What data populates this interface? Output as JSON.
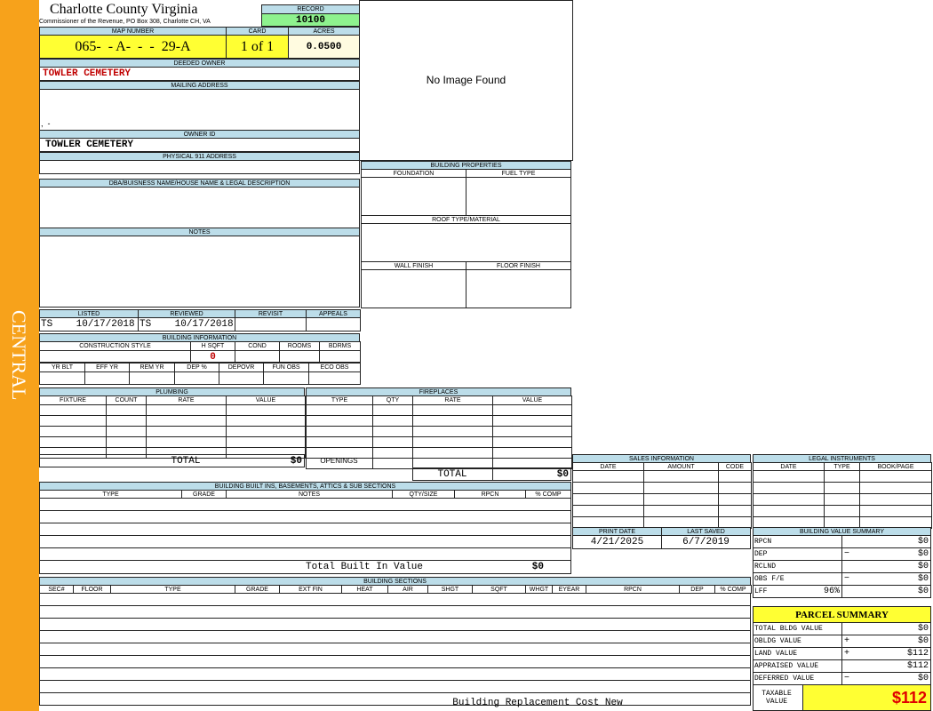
{
  "sidebar_label": "CENTRAL",
  "header": {
    "title": "Charlotte County Virginia",
    "subtitle": "Commissioner of the Revenue, PO Box 308, Charlotte CH, VA",
    "record_label": "RECORD",
    "record": "10100"
  },
  "parcel": {
    "map_number_label": "MAP NUMBER",
    "map_number": "065-  - A-  -  -  29-A",
    "card_label": "CARD",
    "card": "1 of 1",
    "acres_label": "ACRES",
    "acres": "0.0500"
  },
  "image": "No Image Found",
  "owner": {
    "deeded_owner_label": "DEEDED OWNER",
    "deeded_owner": "TOWLER CEMETERY",
    "mailing_address_label": "MAILING ADDRESS",
    "mailing_address": ",  -",
    "owner_id_label": "OWNER ID",
    "owner_id": "TOWLER CEMETERY",
    "physical_address_label": "PHYSICAL 911 ADDRESS",
    "dba_label": "DBA/BUISNESS NAME/HOUSE NAME & LEGAL DESCRIPTION",
    "notes_label": "NOTES"
  },
  "building_properties": {
    "title": "BUILDING PROPERTIES",
    "foundation": "FOUNDATION",
    "fuel_type": "FUEL TYPE",
    "roof": "ROOF TYPE/MATERIAL",
    "wall_finish": "WALL FINISH",
    "floor_finish": "FLOOR FINISH"
  },
  "review": {
    "headers": [
      "LISTED",
      "REVIEWED",
      "REVISIT",
      "APPEALS"
    ],
    "listed": "TS    10/17/2018",
    "reviewed": "TS    10/17/2018"
  },
  "building_information": {
    "title": "BUILDING INFORMATION",
    "headers": [
      "CONSTRUCTION STYLE",
      "H SQFT",
      "COND",
      "ROOMS",
      "BDRMS"
    ],
    "hsqft": "0",
    "headers2": [
      "YR BLT",
      "EFF YR",
      "REM YR",
      "DEP %",
      "DEPOVR",
      "FUN OBS",
      "ECO OBS"
    ]
  },
  "plumbing": {
    "title": "PLUMBING",
    "headers": [
      "FIXTURE",
      "COUNT",
      "RATE",
      "VALUE"
    ],
    "total_label": "TOTAL",
    "total": "$0"
  },
  "fireplaces": {
    "title": "FIREPLACES",
    "headers": [
      "TYPE",
      "QTY",
      "RATE",
      "VALUE"
    ],
    "openings_label": "OPENINGS",
    "total_label": "TOTAL",
    "total": "$0"
  },
  "built_ins": {
    "title": "BUILDING BUILT INS, BASEMENTS, ATTICS & SUB SECTIONS",
    "headers": [
      "TYPE",
      "GRADE",
      "NOTES",
      "QTY/SIZE",
      "RPCN",
      "% COMP"
    ],
    "total_label": "Total Built In Value",
    "total": "$0"
  },
  "building_sections": {
    "title": "BUILDING SECTIONS",
    "headers": [
      "SEC#",
      "FLOOR",
      "TYPE",
      "GRADE",
      "EXT FIN",
      "HEAT",
      "AIR",
      "SHGT",
      "SQFT",
      "WHGT",
      "EYEAR",
      "RPCN",
      "DEP",
      "% COMP"
    ],
    "footer": "Building Replacement Cost New"
  },
  "sales": {
    "title": "SALES INFORMATION",
    "headers": [
      "DATE",
      "AMOUNT",
      "CODE"
    ]
  },
  "legal": {
    "title": "LEGAL INSTRUMENTS",
    "headers": [
      "DATE",
      "TYPE",
      "BOOK/PAGE"
    ]
  },
  "dates": {
    "print_date_label": "PRINT DATE",
    "print_date": "4/21/2025",
    "last_saved_label": "LAST SAVED",
    "last_saved": "6/7/2019"
  },
  "value_summary": {
    "title": "BUILDING VALUE SUMMARY",
    "rows": [
      {
        "label": "RPCN",
        "value": "$0"
      },
      {
        "label": "DEP",
        "sign": "−",
        "value": "$0"
      },
      {
        "label": "RCLND",
        "value": "$0"
      },
      {
        "label": "OBS F/E",
        "sign": "−",
        "value": "$0"
      },
      {
        "label": "LFF",
        "factor": "96%",
        "value": "$0"
      }
    ]
  },
  "parcel_summary": {
    "title": "PARCEL SUMMARY",
    "rows": [
      {
        "label": "TOTAL BLDG VALUE",
        "value": "$0"
      },
      {
        "label": "OBLDG VALUE",
        "sign": "+",
        "value": "$0"
      },
      {
        "label": "LAND VALUE",
        "sign": "+",
        "value": "$112"
      },
      {
        "label": "APPRAISED VALUE",
        "value": "$112"
      },
      {
        "label": "DEFERRED VALUE",
        "sign": "−",
        "value": "$0"
      }
    ],
    "taxable_label": "TAXABLE VALUE",
    "taxable": "$112"
  }
}
